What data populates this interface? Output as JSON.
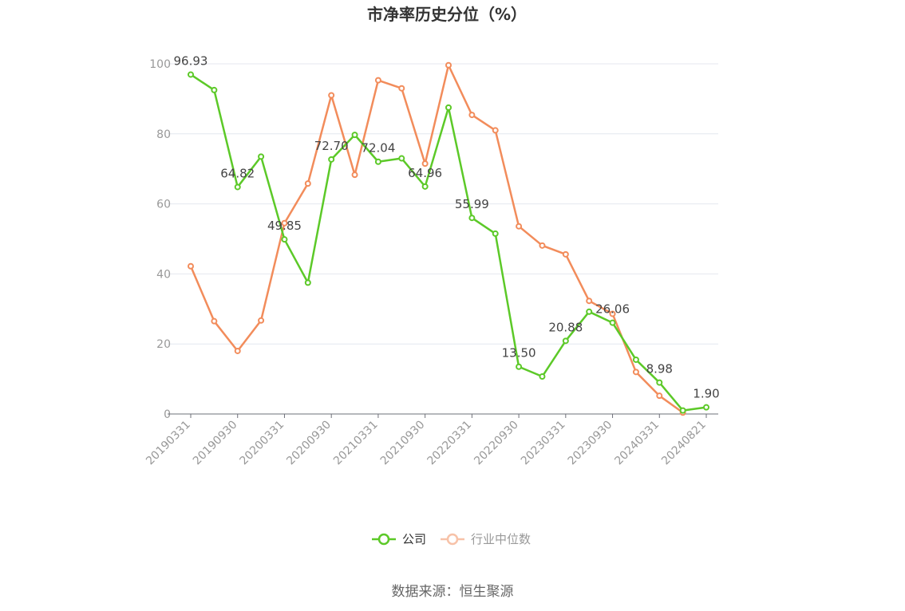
{
  "chart_data": {
    "type": "line",
    "title": "市净率历史分位（%）",
    "source": "数据来源：恒生聚源",
    "ylim": [
      0,
      100
    ],
    "y_ticks": [
      0,
      20,
      40,
      60,
      80,
      100
    ],
    "x": [
      "20190331",
      "20190630",
      "20190930",
      "20191231",
      "20200331",
      "20200630",
      "20200930",
      "20201231",
      "20210331",
      "20210630",
      "20210930",
      "20211231",
      "20220331",
      "20220630",
      "20220930",
      "20221231",
      "20230331",
      "20230630",
      "20230930",
      "20231231",
      "20240331",
      "20240630",
      "20240821"
    ],
    "x_tick_labels": [
      "20190331",
      "20190930",
      "20200331",
      "20200930",
      "20210331",
      "20210930",
      "20220331",
      "20220930",
      "20230331",
      "20230930",
      "20240331",
      "20240821"
    ],
    "grid": "horizontal",
    "legend_position": "bottom",
    "series": [
      {
        "name": "公司",
        "color": "#5cc928",
        "values": [
          96.93,
          92.5,
          64.82,
          73.5,
          49.85,
          37.5,
          72.7,
          79.7,
          72.04,
          73.0,
          64.96,
          87.5,
          55.99,
          51.5,
          13.5,
          10.7,
          20.88,
          29.2,
          26.06,
          15.5,
          8.98,
          1.0,
          1.9
        ],
        "labels": {
          "0": "96.93",
          "2": "64.82",
          "4": "49.85",
          "6": "72.70",
          "8": "72.04",
          "10": "64.96",
          "12": "55.99",
          "14": "13.50",
          "16": "20.88",
          "18": "26.06",
          "20": "8.98",
          "22": "1.90"
        }
      },
      {
        "name": "行业中位数",
        "color": "#f28c5b",
        "values": [
          42.2,
          26.5,
          18.0,
          26.7,
          54.5,
          65.8,
          91.0,
          68.3,
          95.3,
          93.0,
          71.5,
          99.6,
          85.4,
          81.0,
          53.6,
          48.1,
          45.6,
          32.3,
          28.6,
          12.0,
          5.2,
          0.4,
          null
        ]
      }
    ]
  }
}
